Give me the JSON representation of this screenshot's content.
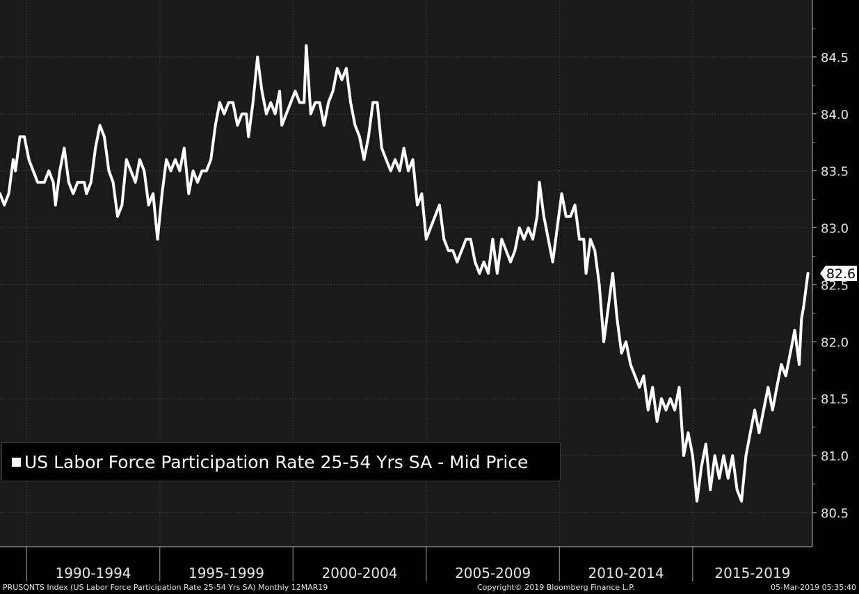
{
  "chart_data": {
    "type": "line",
    "title": "",
    "ylim": [
      80.2,
      85.0
    ],
    "y_ticks": [
      "80.5",
      "81.0",
      "81.5",
      "82.0",
      "82.5",
      "83.0",
      "83.5",
      "84.0",
      "84.5"
    ],
    "x_period_labels": [
      "1990-1994",
      "1995-1999",
      "2000-2004",
      "2005-2009",
      "2010-2014",
      "2015-2019"
    ],
    "x_range": [
      "1989-01",
      "2019-07"
    ],
    "grid": true,
    "legend_position": "bottom-left",
    "last_value_label": "82.6",
    "colors": {
      "background": "#000000",
      "panel": "#1a1a1a",
      "line": "#ffffff",
      "grid": "#5a5a5a"
    },
    "series": [
      {
        "name": "US Labor Force Participation Rate 25-54 Yrs SA - Mid Price",
        "points": [
          [
            "1989-01",
            83.3
          ],
          [
            "1989-03",
            83.2
          ],
          [
            "1989-05",
            83.3
          ],
          [
            "1989-07",
            83.6
          ],
          [
            "1989-08",
            83.5
          ],
          [
            "1989-10",
            83.8
          ],
          [
            "1989-12",
            83.8
          ],
          [
            "1990-02",
            83.6
          ],
          [
            "1990-04",
            83.5
          ],
          [
            "1990-06",
            83.4
          ],
          [
            "1990-09",
            83.4
          ],
          [
            "1990-11",
            83.5
          ],
          [
            "1991-01",
            83.4
          ],
          [
            "1991-02",
            83.2
          ],
          [
            "1991-04",
            83.5
          ],
          [
            "1991-06",
            83.7
          ],
          [
            "1991-08",
            83.4
          ],
          [
            "1991-10",
            83.3
          ],
          [
            "1991-12",
            83.4
          ],
          [
            "1992-03",
            83.4
          ],
          [
            "1992-04",
            83.3
          ],
          [
            "1992-06",
            83.4
          ],
          [
            "1992-08",
            83.7
          ],
          [
            "1992-10",
            83.9
          ],
          [
            "1992-12",
            83.8
          ],
          [
            "1993-02",
            83.5
          ],
          [
            "1993-04",
            83.4
          ],
          [
            "1993-06",
            83.1
          ],
          [
            "1993-08",
            83.2
          ],
          [
            "1993-10",
            83.6
          ],
          [
            "1993-12",
            83.5
          ],
          [
            "1994-02",
            83.4
          ],
          [
            "1994-04",
            83.6
          ],
          [
            "1994-06",
            83.5
          ],
          [
            "1994-08",
            83.2
          ],
          [
            "1994-10",
            83.3
          ],
          [
            "1994-12",
            82.9
          ],
          [
            "1995-02",
            83.3
          ],
          [
            "1995-04",
            83.6
          ],
          [
            "1995-06",
            83.5
          ],
          [
            "1995-08",
            83.6
          ],
          [
            "1995-10",
            83.5
          ],
          [
            "1995-12",
            83.7
          ],
          [
            "1996-02",
            83.3
          ],
          [
            "1996-04",
            83.5
          ],
          [
            "1996-06",
            83.4
          ],
          [
            "1996-08",
            83.5
          ],
          [
            "1996-10",
            83.5
          ],
          [
            "1996-12",
            83.6
          ],
          [
            "1997-02",
            83.9
          ],
          [
            "1997-04",
            84.1
          ],
          [
            "1997-06",
            84.0
          ],
          [
            "1997-08",
            84.1
          ],
          [
            "1997-10",
            84.1
          ],
          [
            "1997-12",
            83.9
          ],
          [
            "1998-02",
            84.0
          ],
          [
            "1998-04",
            84.0
          ],
          [
            "1998-05",
            83.8
          ],
          [
            "1998-07",
            84.1
          ],
          [
            "1998-09",
            84.5
          ],
          [
            "1998-11",
            84.2
          ],
          [
            "1999-01",
            84.0
          ],
          [
            "1999-03",
            84.1
          ],
          [
            "1999-05",
            84.0
          ],
          [
            "1999-07",
            84.2
          ],
          [
            "1999-08",
            83.9
          ],
          [
            "1999-10",
            84.0
          ],
          [
            "1999-12",
            84.1
          ],
          [
            "2000-02",
            84.2
          ],
          [
            "2000-04",
            84.1
          ],
          [
            "2000-06",
            84.1
          ],
          [
            "2000-07",
            84.6
          ],
          [
            "2000-09",
            84.0
          ],
          [
            "2000-11",
            84.1
          ],
          [
            "2001-01",
            84.1
          ],
          [
            "2001-03",
            83.9
          ],
          [
            "2001-05",
            84.1
          ],
          [
            "2001-07",
            84.2
          ],
          [
            "2001-09",
            84.4
          ],
          [
            "2001-11",
            84.3
          ],
          [
            "2002-01",
            84.4
          ],
          [
            "2002-03",
            84.1
          ],
          [
            "2002-05",
            83.9
          ],
          [
            "2002-07",
            83.8
          ],
          [
            "2002-09",
            83.6
          ],
          [
            "2002-11",
            83.8
          ],
          [
            "2003-01",
            84.1
          ],
          [
            "2003-03",
            84.1
          ],
          [
            "2003-05",
            83.7
          ],
          [
            "2003-07",
            83.6
          ],
          [
            "2003-09",
            83.5
          ],
          [
            "2003-11",
            83.6
          ],
          [
            "2004-01",
            83.5
          ],
          [
            "2004-03",
            83.7
          ],
          [
            "2004-05",
            83.5
          ],
          [
            "2004-07",
            83.6
          ],
          [
            "2004-09",
            83.2
          ],
          [
            "2004-11",
            83.3
          ],
          [
            "2005-01",
            82.9
          ],
          [
            "2005-03",
            83.0
          ],
          [
            "2005-05",
            83.1
          ],
          [
            "2005-07",
            83.2
          ],
          [
            "2005-09",
            82.9
          ],
          [
            "2005-11",
            82.8
          ],
          [
            "2006-01",
            82.8
          ],
          [
            "2006-03",
            82.7
          ],
          [
            "2006-05",
            82.8
          ],
          [
            "2006-07",
            82.9
          ],
          [
            "2006-09",
            82.9
          ],
          [
            "2006-11",
            82.7
          ],
          [
            "2007-01",
            82.6
          ],
          [
            "2007-03",
            82.7
          ],
          [
            "2007-05",
            82.6
          ],
          [
            "2007-07",
            82.9
          ],
          [
            "2007-09",
            82.6
          ],
          [
            "2007-11",
            82.9
          ],
          [
            "2008-01",
            82.8
          ],
          [
            "2008-03",
            82.7
          ],
          [
            "2008-05",
            82.8
          ],
          [
            "2008-07",
            83.0
          ],
          [
            "2008-09",
            82.9
          ],
          [
            "2008-11",
            83.0
          ],
          [
            "2009-01",
            82.9
          ],
          [
            "2009-03",
            83.1
          ],
          [
            "2009-04",
            83.4
          ],
          [
            "2009-06",
            83.1
          ],
          [
            "2009-08",
            82.9
          ],
          [
            "2009-10",
            82.7
          ],
          [
            "2009-12",
            83.0
          ],
          [
            "2010-02",
            83.3
          ],
          [
            "2010-04",
            83.1
          ],
          [
            "2010-06",
            83.1
          ],
          [
            "2010-08",
            83.2
          ],
          [
            "2010-10",
            82.9
          ],
          [
            "2010-12",
            82.9
          ],
          [
            "2011-01",
            82.6
          ],
          [
            "2011-03",
            82.9
          ],
          [
            "2011-05",
            82.8
          ],
          [
            "2011-07",
            82.5
          ],
          [
            "2011-09",
            82.0
          ],
          [
            "2011-11",
            82.3
          ],
          [
            "2012-01",
            82.6
          ],
          [
            "2012-03",
            82.2
          ],
          [
            "2012-05",
            81.9
          ],
          [
            "2012-07",
            82.0
          ],
          [
            "2012-09",
            81.8
          ],
          [
            "2012-11",
            81.7
          ],
          [
            "2013-01",
            81.6
          ],
          [
            "2013-03",
            81.7
          ],
          [
            "2013-05",
            81.4
          ],
          [
            "2013-07",
            81.6
          ],
          [
            "2013-09",
            81.3
          ],
          [
            "2013-11",
            81.5
          ],
          [
            "2014-01",
            81.4
          ],
          [
            "2014-03",
            81.5
          ],
          [
            "2014-05",
            81.4
          ],
          [
            "2014-07",
            81.6
          ],
          [
            "2014-09",
            81.0
          ],
          [
            "2014-11",
            81.2
          ],
          [
            "2015-01",
            81.0
          ],
          [
            "2015-03",
            80.6
          ],
          [
            "2015-05",
            80.9
          ],
          [
            "2015-07",
            81.1
          ],
          [
            "2015-09",
            80.7
          ],
          [
            "2015-11",
            81.0
          ],
          [
            "2016-01",
            80.8
          ],
          [
            "2016-03",
            81.0
          ],
          [
            "2016-05",
            80.8
          ],
          [
            "2016-07",
            81.0
          ],
          [
            "2016-09",
            80.7
          ],
          [
            "2016-11",
            80.6
          ],
          [
            "2017-01",
            81.0
          ],
          [
            "2017-03",
            81.2
          ],
          [
            "2017-05",
            81.4
          ],
          [
            "2017-07",
            81.2
          ],
          [
            "2017-09",
            81.4
          ],
          [
            "2017-11",
            81.6
          ],
          [
            "2018-01",
            81.4
          ],
          [
            "2018-03",
            81.6
          ],
          [
            "2018-05",
            81.8
          ],
          [
            "2018-07",
            81.7
          ],
          [
            "2018-09",
            81.9
          ],
          [
            "2018-11",
            82.1
          ],
          [
            "2019-01",
            81.8
          ],
          [
            "2019-02",
            82.2
          ],
          [
            "2019-03",
            82.3
          ],
          [
            "2019-05",
            82.6
          ]
        ]
      }
    ]
  },
  "footer": {
    "left": "PRUSQNTS Index (US Labor Force Participation Rate 25-54 Yrs SA)  Monthly 12MAR19",
    "center": "Copyright© 2019 Bloomberg Finance L.P.",
    "right": "05-Mar-2019 05:35:40"
  }
}
